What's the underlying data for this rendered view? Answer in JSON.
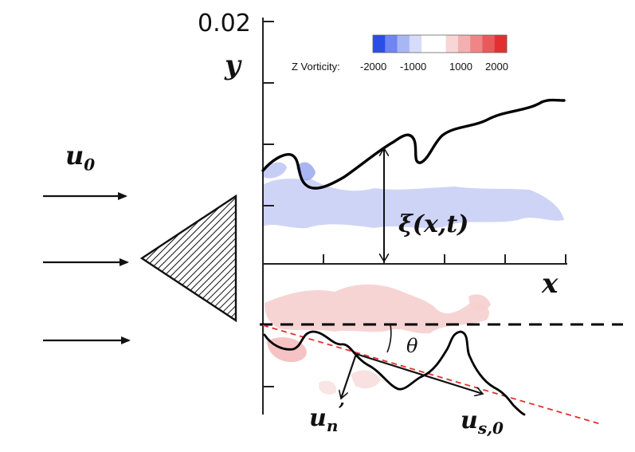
{
  "axis": {
    "y_max_label": "0.02",
    "y_label": "y",
    "x_label": "x"
  },
  "legend": {
    "title": "Z Vorticity:",
    "ticks": [
      "-2000",
      "-1000",
      "1000",
      "2000"
    ],
    "colors": [
      "#2a4ee6",
      "#6f86f0",
      "#a9b6f6",
      "#d6dcfa",
      "#ffffff",
      "#ffffff",
      "#f8d6d6",
      "#f4b0b0",
      "#ee8686",
      "#e85a5a",
      "#e23030"
    ]
  },
  "labels": {
    "u0": "u",
    "u0_sub": "0",
    "xi": "ξ(x,t)",
    "theta": "θ",
    "un": "u",
    "un_sub": "n",
    "un_prime": "’",
    "us": "u",
    "us_sub": "s,0"
  },
  "colors": {
    "negative_vorticity": "#c9cff5",
    "positive_vorticity": "#f7d2d2",
    "flame_front": "#000000",
    "reference_line": "#e23030"
  }
}
